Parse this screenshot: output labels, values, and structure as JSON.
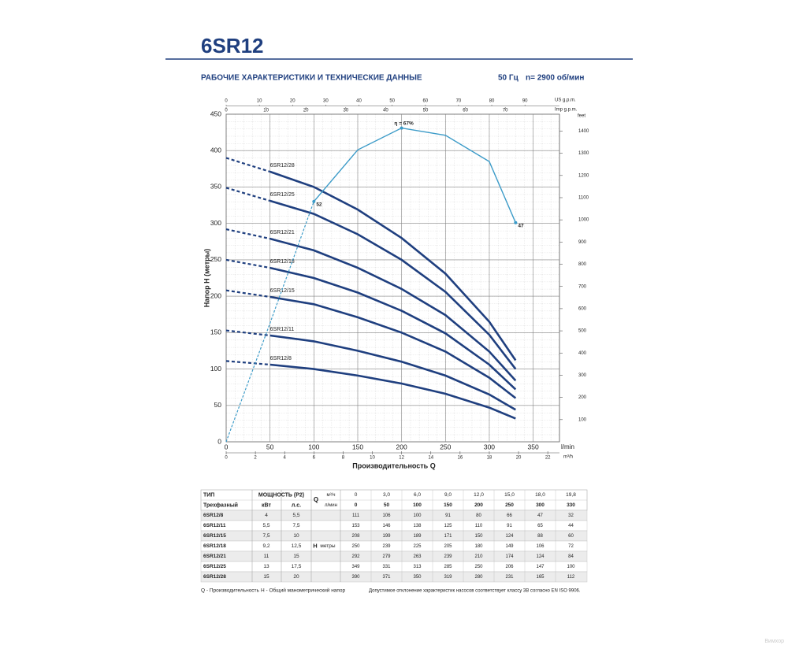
{
  "header": {
    "title": "6SR12",
    "subtitle": "РАБОЧИЕ ХАРАКТЕРИСТИКИ И ТЕХНИЧЕСКИЕ ДАННЫЕ",
    "frequency": "50 Гц",
    "speed": "n= 2900 об/мин"
  },
  "chart_data": {
    "type": "line",
    "x_label": "Производительность Q",
    "y_label": "Напор H (метры)",
    "x_unit": "l/min",
    "xlim": [
      0,
      380
    ],
    "xticks": [
      0,
      50,
      100,
      150,
      200,
      250,
      300,
      350
    ],
    "ylim": [
      0,
      450
    ],
    "yticks": [
      0,
      50,
      100,
      150,
      200,
      250,
      300,
      350,
      400,
      450
    ],
    "y2_unit": "feet",
    "y2lim": [
      0,
      1476
    ],
    "y2ticks": [
      100,
      200,
      300,
      400,
      500,
      600,
      700,
      800,
      900,
      1000,
      1100,
      1200,
      1300,
      1400
    ],
    "top_axes": [
      {
        "unit": "US g.p.m.",
        "lim": [
          0,
          100.4
        ],
        "ticks": [
          0,
          10,
          20,
          30,
          40,
          50,
          60,
          70,
          80,
          90
        ]
      },
      {
        "unit": "Imp g.p.m.",
        "lim": [
          0,
          83.6
        ],
        "ticks": [
          0,
          10,
          20,
          30,
          40,
          50,
          60,
          70
        ]
      }
    ],
    "bottom_axis2": {
      "unit": "m³/h",
      "lim": [
        0,
        22.8
      ],
      "ticks": [
        0,
        2,
        4,
        6,
        8,
        10,
        12,
        14,
        16,
        18,
        20,
        22
      ]
    },
    "grid": true,
    "color": "#1f3f7f",
    "x": [
      0,
      50,
      100,
      150,
      200,
      250,
      300,
      330
    ],
    "series": [
      {
        "name": "6SR12/8",
        "values": [
          111,
          106,
          100,
          91,
          80,
          66,
          47,
          32
        ]
      },
      {
        "name": "6SR12/11",
        "values": [
          153,
          146,
          138,
          125,
          110,
          91,
          65,
          44
        ]
      },
      {
        "name": "6SR12/15",
        "values": [
          208,
          199,
          189,
          171,
          150,
          124,
          88,
          60
        ]
      },
      {
        "name": "6SR12/18",
        "values": [
          250,
          239,
          225,
          205,
          180,
          149,
          106,
          72
        ]
      },
      {
        "name": "6SR12/21",
        "values": [
          292,
          279,
          263,
          239,
          210,
          174,
          124,
          84
        ]
      },
      {
        "name": "6SR12/25",
        "values": [
          349,
          331,
          313,
          285,
          250,
          206,
          147,
          100
        ]
      },
      {
        "name": "6SR12/28",
        "values": [
          390,
          371,
          350,
          319,
          280,
          231,
          165,
          112
        ]
      }
    ],
    "efficiency": {
      "color": "#3c9bc8",
      "x": [
        0,
        50,
        100,
        150,
        200,
        250,
        300,
        330
      ],
      "y": [
        0,
        163,
        330,
        401,
        431,
        421,
        385,
        301
      ],
      "value_labels": [
        null,
        null,
        "52",
        null,
        "η = 67%",
        null,
        null,
        "47"
      ]
    }
  },
  "table": {
    "type_label": "ТИП",
    "power_label": "МОЩНОСТЬ (P2)",
    "phase_label": "Трехфазный",
    "kw_label": "кВт",
    "hp_label": "л.с.",
    "q_label": "Q",
    "m3h_label": "м³/ч",
    "lmin_label": "л/мин",
    "h_label": "H",
    "h_unit": "метры",
    "q_m3h": [
      "0",
      "3,0",
      "6,0",
      "9,0",
      "12,0",
      "15,0",
      "18,0",
      "19,8"
    ],
    "power": [
      [
        "4",
        "5,5"
      ],
      [
        "5,5",
        "7,5"
      ],
      [
        "7,5",
        "10"
      ],
      [
        "9,2",
        "12,5"
      ],
      [
        "11",
        "15"
      ],
      [
        "13",
        "17,5"
      ],
      [
        "15",
        "20"
      ]
    ]
  },
  "footer": {
    "q_note": "Q - Производительность",
    "h_note": "H - Общий манометрический напор",
    "tolerance": "Допустимое отклонение характеристик насосов соответствует классу 3В согласно EN ISO 9906.",
    "watermark": "Вимхор"
  }
}
